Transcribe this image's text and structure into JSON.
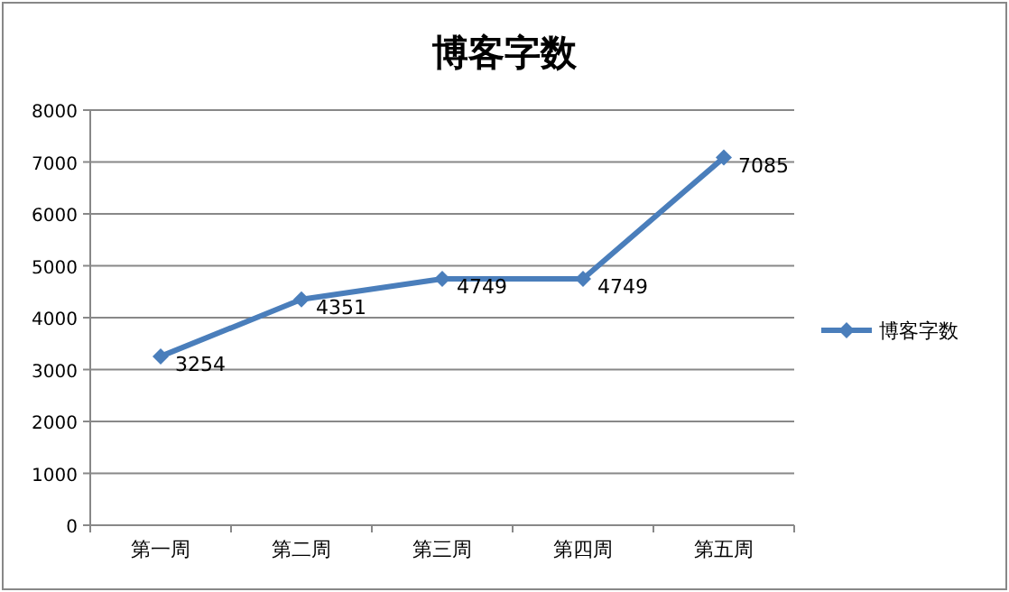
{
  "chart_data": {
    "type": "line",
    "title": "博客字数",
    "categories": [
      "第一周",
      "第二周",
      "第三周",
      "第四周",
      "第五周"
    ],
    "series": [
      {
        "name": "博客字数",
        "color": "#4a7ebb",
        "values": [
          3254,
          4351,
          4749,
          4749,
          7085
        ]
      }
    ],
    "ylim": [
      0,
      8000
    ],
    "yticks": [
      0,
      1000,
      2000,
      3000,
      4000,
      5000,
      6000,
      7000,
      8000
    ],
    "grid": "y",
    "legend": "right",
    "marker": "diamond",
    "line_style": "solid",
    "data_labels": true
  }
}
